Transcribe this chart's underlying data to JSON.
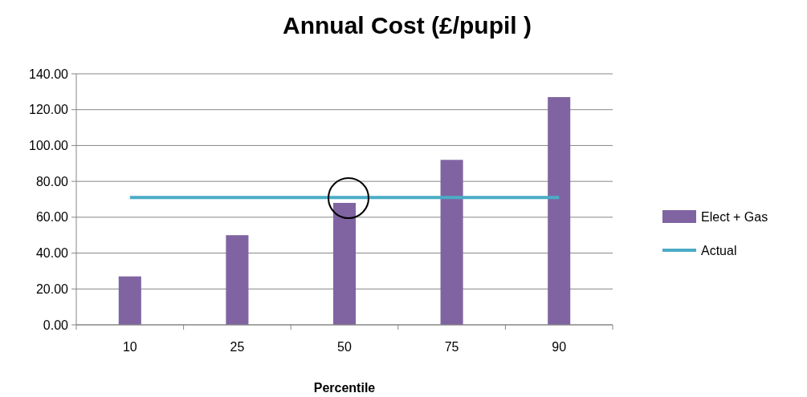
{
  "chart_data": {
    "type": "bar",
    "title": "Annual Cost (£/pupil )",
    "xlabel": "Percentile",
    "categories": [
      "10",
      "25",
      "50",
      "75",
      "90"
    ],
    "series": [
      {
        "name": "Elect + Gas",
        "color": "#8064a2",
        "values": [
          27,
          50,
          68,
          92,
          127
        ]
      },
      {
        "name": "Actual",
        "type": "line",
        "color": "#4bacc6",
        "values": [
          71,
          71,
          71,
          71,
          71
        ]
      }
    ],
    "ylim": [
      0,
      140
    ],
    "yticks": [
      {
        "value": 0,
        "label": "0.00"
      },
      {
        "value": 20,
        "label": "20.00"
      },
      {
        "value": 40,
        "label": "40.00"
      },
      {
        "value": 60,
        "label": "60.00"
      },
      {
        "value": 80,
        "label": "80.00"
      },
      {
        "value": 100,
        "label": "100.00"
      },
      {
        "value": 120,
        "label": "120.00"
      },
      {
        "value": 140,
        "label": "140.00"
      }
    ],
    "grid": "y",
    "legend": "right",
    "marker": "none",
    "line_style": "solid"
  }
}
